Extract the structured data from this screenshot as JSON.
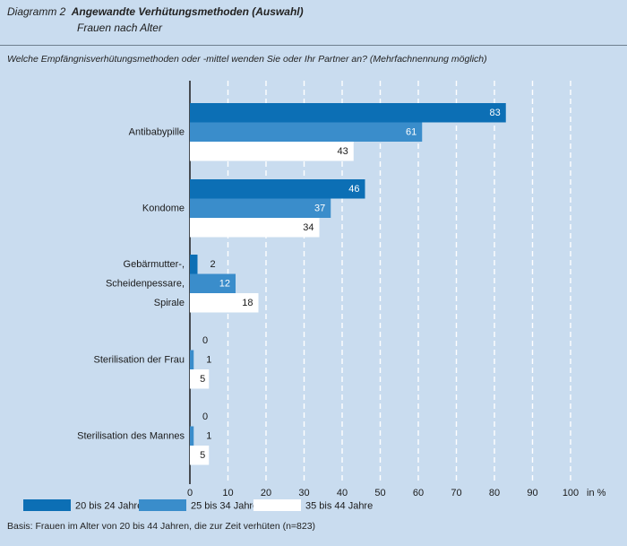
{
  "header": {
    "label": "Diagramm 2",
    "title": "Angewandte Verhütungsmethoden (Auswahl)",
    "subtitle": "Frauen nach Alter"
  },
  "question": "Welche Empfängnisverhütungsmethoden oder -mittel wenden Sie oder Ihr Partner an? (Mehrfachnennung möglich)",
  "footer": "Basis: Frauen im Alter von 20 bis 44 Jahren, die zur Zeit verhüten (n=823)",
  "colors": {
    "background": "#c9dcef",
    "series1": "#0c6fb5",
    "series2": "#3a8dcb",
    "series3": "#ffffff"
  },
  "chart_data": {
    "type": "bar",
    "orientation": "horizontal",
    "categories": [
      [
        "Antibabypille"
      ],
      [
        "Kondome"
      ],
      [
        "Gebärmutter-,",
        "Scheidenpessare,",
        "Spirale"
      ],
      [
        "Sterilisation der Frau"
      ],
      [
        "Sterilisation des Mannes"
      ]
    ],
    "series": [
      {
        "name": "20 bis 24 Jahre",
        "values": [
          83,
          46,
          2,
          0,
          0
        ]
      },
      {
        "name": "25 bis 34 Jahre",
        "values": [
          61,
          37,
          12,
          1,
          1
        ]
      },
      {
        "name": "35 bis 44 Jahre",
        "values": [
          43,
          34,
          18,
          5,
          5
        ]
      }
    ],
    "x_ticks": [
      "0",
      "10",
      "20",
      "30",
      "40",
      "50",
      "60",
      "70",
      "80",
      "90",
      "100"
    ],
    "x_unit": "in %",
    "xlim": [
      0,
      100
    ],
    "grid": true,
    "legend_position": "bottom-left"
  }
}
